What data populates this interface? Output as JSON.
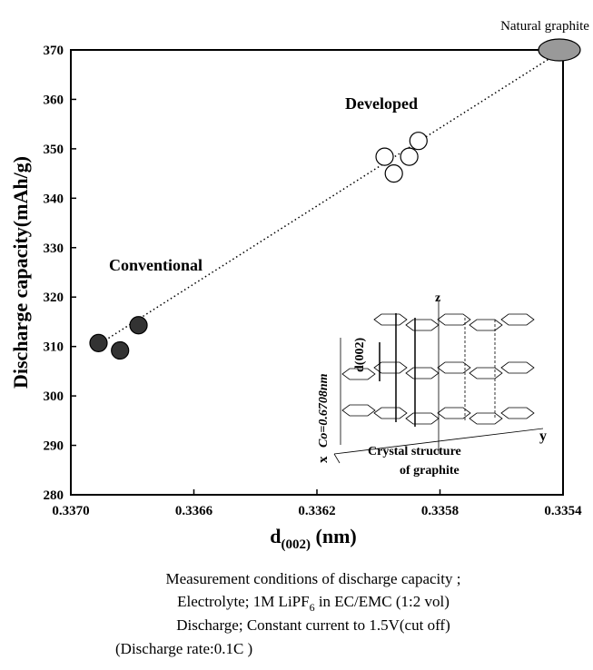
{
  "chart_data": {
    "type": "scatter",
    "ylabel": "Discharge capacity(mAh/g)",
    "xlabel": {
      "main": "d",
      "sub": "(002)",
      "unit": "(nm)"
    },
    "xlim": [
      0.337,
      0.3354
    ],
    "ylim": [
      280,
      370
    ],
    "xticks": [
      {
        "value": 0.337,
        "label": "0.3370"
      },
      0.3366,
      0.3362,
      0.3358,
      0.3354
    ],
    "yticks": [
      280,
      290,
      300,
      310,
      320,
      330,
      340,
      350,
      360,
      370
    ],
    "series": [
      {
        "name": "Conventional",
        "color": "#333333",
        "x": [
          0.33691,
          0.33678,
          0.33684
        ],
        "values": [
          310.7,
          314.3,
          309.2
        ]
      },
      {
        "name": "Developed",
        "color": "#ffffff",
        "x": [
          0.33598,
          0.33595,
          0.3359,
          0.33587
        ],
        "values": [
          348.4,
          345.0,
          348.4,
          351.6
        ]
      },
      {
        "name": "Natural graphite",
        "color": "#999999",
        "x": [
          0.3354
        ],
        "values": [
          370
        ]
      }
    ],
    "trend": {
      "x": [
        0.3369,
        0.3354
      ],
      "values": [
        310.8,
        370
      ]
    },
    "inset": {
      "z": "z",
      "y": "y",
      "x": "x",
      "spacing": "d(002)",
      "co": "Co=0.6708nm",
      "caption": [
        "Crystal structure",
        "of graphite"
      ]
    }
  },
  "caption": {
    "line1": "Measurement conditions of discharge capacity ;",
    "line2": {
      "pre": "Electrolyte; 1M LiPF",
      "sub": "6",
      "post": " in EC/EMC (1:2 vol)"
    },
    "line3": "Discharge; Constant current to 1.5V(cut off)",
    "line4": "(Discharge rate:0.1C )"
  }
}
